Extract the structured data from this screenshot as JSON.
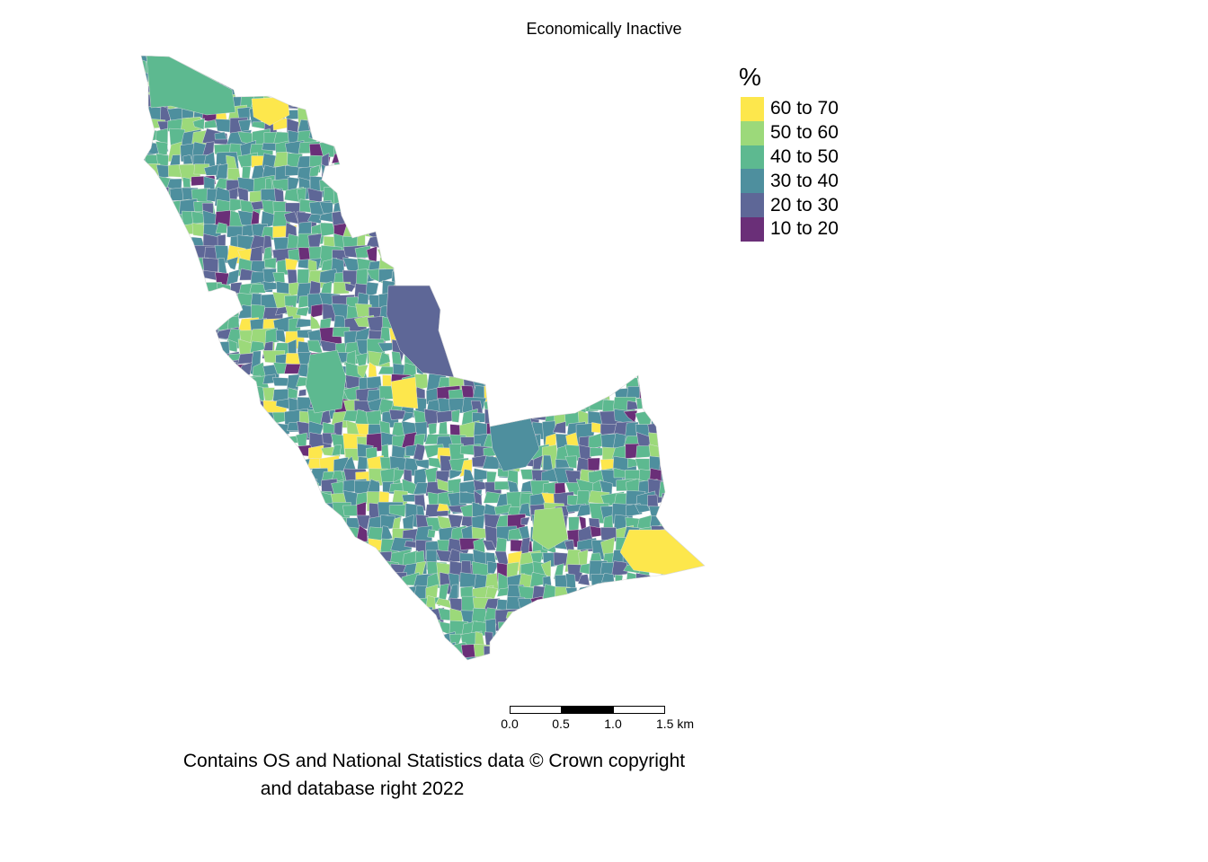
{
  "title": "Economically Inactive",
  "legend": {
    "title": "%",
    "items": [
      {
        "label": "60 to 70",
        "color": "#FDE74C"
      },
      {
        "label": "50 to 60",
        "color": "#9CD97A"
      },
      {
        "label": "40 to 50",
        "color": "#5DB990"
      },
      {
        "label": "30 to 40",
        "color": "#4E8F9E"
      },
      {
        "label": "20 to 30",
        "color": "#5E6797"
      },
      {
        "label": "10 to 20",
        "color": "#6A2F78"
      }
    ]
  },
  "scalebar": {
    "ticks": [
      "0.0",
      "0.5",
      "1.0",
      "1.5 km"
    ]
  },
  "credit": {
    "line1": "Contains OS and National Statistics data © Crown copyright",
    "line2": "and database right 2022"
  }
}
